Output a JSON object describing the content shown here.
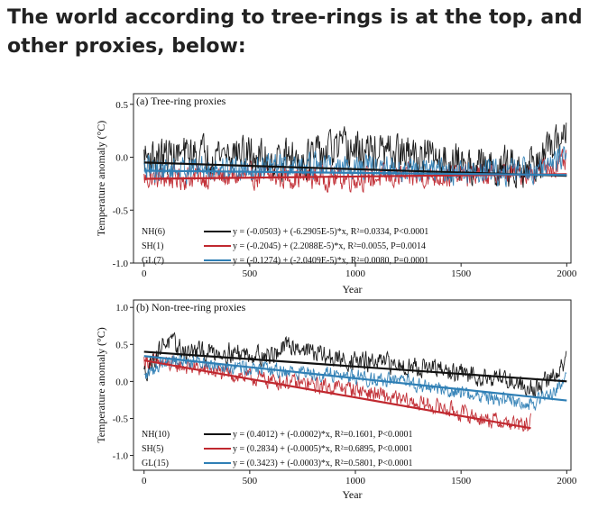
{
  "headline": "The world according to tree-rings is at the top, and other proxies, below:",
  "colors": {
    "NH": "#111111",
    "SH": "#c0282f",
    "GL": "#2f7fb5"
  },
  "chart_data": [
    {
      "type": "line",
      "title": "(a) Tree-ring proxies",
      "xlabel": "Year",
      "ylabel": "Temperature anomaly (°C)",
      "xlim": [
        -50,
        2020
      ],
      "ylim": [
        -1.0,
        0.6
      ],
      "xticks": [
        "0",
        "500",
        "1000",
        "1500",
        "2000"
      ],
      "yticks": [
        "0.5",
        "0.0",
        "-0.5",
        "-1.0"
      ],
      "series": [
        {
          "name": "NH(6)",
          "key": "NH",
          "start": 0,
          "end": 2000,
          "base": [
            [
              0,
              0.0
            ],
            [
              200,
              0.02
            ],
            [
              400,
              0.05
            ],
            [
              600,
              -0.02
            ],
            [
              800,
              0.0
            ],
            [
              900,
              0.08
            ],
            [
              1000,
              0.06
            ],
            [
              1200,
              0.03
            ],
            [
              1400,
              -0.02
            ],
            [
              1500,
              -0.06
            ],
            [
              1650,
              -0.1
            ],
            [
              1800,
              -0.08
            ],
            [
              1900,
              0.0
            ],
            [
              1950,
              0.1
            ],
            [
              2000,
              0.3
            ]
          ],
          "noise": 0.16
        },
        {
          "name": "SH(1)",
          "key": "SH",
          "start": 0,
          "end": 2000,
          "base": [
            [
              0,
              -0.2
            ],
            [
              500,
              -0.18
            ],
            [
              1000,
              -0.2
            ],
            [
              1500,
              -0.17
            ],
            [
              1800,
              -0.15
            ],
            [
              2000,
              -0.05
            ]
          ],
          "noise": 0.1
        },
        {
          "name": "GL(7)",
          "key": "GL",
          "start": 0,
          "end": 2000,
          "base": [
            [
              0,
              -0.12
            ],
            [
              400,
              -0.1
            ],
            [
              900,
              -0.08
            ],
            [
              1200,
              -0.12
            ],
            [
              1600,
              -0.15
            ],
            [
              1900,
              -0.1
            ],
            [
              2000,
              0.05
            ]
          ],
          "noise": 0.11
        }
      ],
      "trends": [
        {
          "key": "NH",
          "label": "y = (-0.0503) + (-6.2905E-5)*x, R²=0.0334, P<0.0001"
        },
        {
          "key": "SH",
          "label": "y = (-0.2045) + (2.2088E-5)*x, R²=0.0055, P=0.0014"
        },
        {
          "key": "GL",
          "label": "y = (-0.1274) + (-2.0409E-5)*x, R²=0.0080, P=0.0001"
        }
      ]
    },
    {
      "type": "line",
      "title": "(b) Non-tree-ring proxies",
      "xlabel": "Year",
      "ylabel": "Temperature anomaly (°C)",
      "xlim": [
        -50,
        2020
      ],
      "ylim": [
        -1.2,
        1.1
      ],
      "xticks": [
        "0",
        "500",
        "1000",
        "1500",
        "2000"
      ],
      "yticks": [
        "1.0",
        "0.5",
        "0.0",
        "-0.5",
        "-1.0"
      ],
      "series": [
        {
          "name": "NH(10)",
          "key": "NH",
          "start": 0,
          "end": 2000,
          "base": [
            [
              0,
              0.1
            ],
            [
              100,
              0.55
            ],
            [
              200,
              0.4
            ],
            [
              400,
              0.4
            ],
            [
              600,
              0.35
            ],
            [
              700,
              0.5
            ],
            [
              900,
              0.3
            ],
            [
              1100,
              0.25
            ],
            [
              1300,
              0.2
            ],
            [
              1500,
              0.1
            ],
            [
              1700,
              0.05
            ],
            [
              1850,
              -0.1
            ],
            [
              1950,
              0.1
            ],
            [
              2000,
              0.3
            ]
          ],
          "noise": 0.12
        },
        {
          "name": "SH(5)",
          "key": "SH",
          "start": 0,
          "end": 1830,
          "base": [
            [
              0,
              0.28
            ],
            [
              200,
              0.2
            ],
            [
              500,
              0.05
            ],
            [
              800,
              -0.05
            ],
            [
              1000,
              -0.1
            ],
            [
              1200,
              -0.25
            ],
            [
              1400,
              -0.35
            ],
            [
              1600,
              -0.5
            ],
            [
              1800,
              -0.6
            ],
            [
              1830,
              -0.55
            ]
          ],
          "noise": 0.1
        },
        {
          "name": "GL(15)",
          "key": "GL",
          "start": 0,
          "end": 2000,
          "base": [
            [
              0,
              0.05
            ],
            [
              100,
              0.3
            ],
            [
              300,
              0.25
            ],
            [
              600,
              0.15
            ],
            [
              900,
              0.1
            ],
            [
              1200,
              0.0
            ],
            [
              1500,
              -0.15
            ],
            [
              1700,
              -0.25
            ],
            [
              1850,
              -0.3
            ],
            [
              1950,
              -0.1
            ],
            [
              2000,
              0.05
            ]
          ],
          "noise": 0.09
        }
      ],
      "trends": [
        {
          "key": "NH",
          "label": "y = (0.4012) + (-0.0002)*x, R²=0.1601, P<0.0001"
        },
        {
          "key": "SH",
          "label": "y = (0.2834) + (-0.0005)*x, R²=0.6895, P<0.0001"
        },
        {
          "key": "GL",
          "label": "y = (0.3423) + (-0.0003)*x, R²=0.5801, P<0.0001"
        }
      ]
    }
  ]
}
